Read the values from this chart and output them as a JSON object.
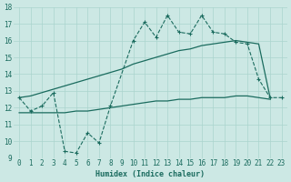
{
  "xlabel": "Humidex (Indice chaleur)",
  "xlim": [
    -0.5,
    23.5
  ],
  "ylim": [
    9,
    18
  ],
  "yticks": [
    9,
    10,
    11,
    12,
    13,
    14,
    15,
    16,
    17,
    18
  ],
  "xticks": [
    0,
    1,
    2,
    3,
    4,
    5,
    6,
    7,
    8,
    9,
    10,
    11,
    12,
    13,
    14,
    15,
    16,
    17,
    18,
    19,
    20,
    21,
    22,
    23
  ],
  "bg_color": "#cce8e4",
  "grid_color": "#aad4ce",
  "line_color": "#1a6b5e",
  "line1_x": [
    0,
    1,
    2,
    3,
    4,
    5,
    6,
    7,
    8,
    10,
    11,
    12,
    13,
    14,
    15,
    16,
    17,
    18,
    19,
    20,
    21,
    22,
    23
  ],
  "line1_y": [
    12.6,
    11.8,
    12.1,
    12.9,
    9.4,
    9.3,
    10.5,
    9.9,
    12.1,
    16.0,
    17.1,
    16.2,
    17.5,
    16.5,
    16.4,
    17.5,
    16.5,
    16.4,
    15.9,
    15.8,
    13.7,
    12.6,
    12.6
  ],
  "line2_x": [
    0,
    1,
    2,
    3,
    4,
    5,
    6,
    7,
    8,
    9,
    10,
    11,
    12,
    13,
    14,
    15,
    16,
    17,
    18,
    19,
    20,
    21,
    22
  ],
  "line2_y": [
    12.6,
    12.7,
    12.9,
    13.1,
    13.3,
    13.5,
    13.7,
    13.9,
    14.1,
    14.3,
    14.6,
    14.8,
    15.0,
    15.2,
    15.4,
    15.5,
    15.7,
    15.8,
    15.9,
    16.0,
    15.9,
    15.8,
    12.6
  ],
  "line3_x": [
    0,
    1,
    2,
    3,
    4,
    5,
    6,
    7,
    8,
    9,
    10,
    11,
    12,
    13,
    14,
    15,
    16,
    17,
    18,
    19,
    20,
    21,
    22
  ],
  "line3_y": [
    11.7,
    11.7,
    11.7,
    11.7,
    11.7,
    11.8,
    11.8,
    11.9,
    12.0,
    12.1,
    12.2,
    12.3,
    12.4,
    12.4,
    12.5,
    12.5,
    12.6,
    12.6,
    12.6,
    12.7,
    12.7,
    12.6,
    12.5
  ],
  "axis_fontsize": 6,
  "tick_fontsize": 5.5
}
